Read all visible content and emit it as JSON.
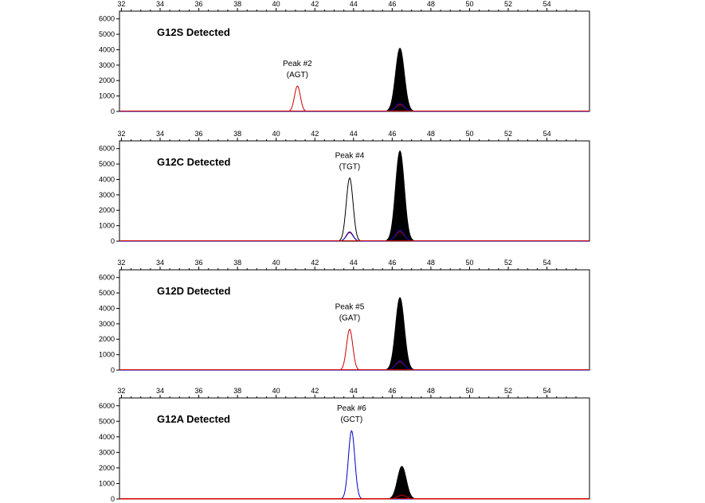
{
  "chart_data": [
    {
      "type": "line",
      "title": "G12S Detected",
      "x_ticks": [
        32,
        34,
        36,
        38,
        40,
        42,
        44,
        46,
        48,
        50,
        52,
        54
      ],
      "y_ticks": [
        0,
        1000,
        2000,
        3000,
        4000,
        5000,
        6000
      ],
      "xlim": [
        31.9,
        56.2
      ],
      "ylim": [
        0,
        6500
      ],
      "annotation": {
        "label": "Peak #2",
        "codon": "(AGT)",
        "x": 41.1,
        "y": 1650
      },
      "series": [
        {
          "color": "#000000",
          "fill": true,
          "peaks": [
            {
              "x": 46.4,
              "height": 4100,
              "width": 0.45
            }
          ]
        },
        {
          "color": "#cc0000",
          "fill": false,
          "peaks": [
            {
              "x": 41.1,
              "height": 1650,
              "width": 0.3
            },
            {
              "x": 46.4,
              "height": 450,
              "width": 0.45
            }
          ]
        },
        {
          "color": "#0000cc",
          "fill": false,
          "peaks": [
            {
              "x": 46.4,
              "height": 520,
              "width": 0.45
            }
          ]
        }
      ]
    },
    {
      "type": "line",
      "title": "G12C Detected",
      "x_ticks": [
        32,
        34,
        36,
        38,
        40,
        42,
        44,
        46,
        48,
        50,
        52,
        54
      ],
      "y_ticks": [
        0,
        1000,
        2000,
        3000,
        4000,
        5000,
        6000
      ],
      "xlim": [
        31.9,
        56.2
      ],
      "ylim": [
        0,
        6500
      ],
      "annotation": {
        "label": "Peak #4",
        "codon": "(TGT)",
        "x": 43.8,
        "y": 4100
      },
      "series": [
        {
          "color": "#000000",
          "fill": true,
          "peaks": [
            {
              "x": 46.4,
              "height": 5850,
              "width": 0.45
            }
          ]
        },
        {
          "color": "#000000",
          "fill": false,
          "peaks": [
            {
              "x": 43.8,
              "height": 4100,
              "width": 0.35
            }
          ]
        },
        {
          "color": "#cc0000",
          "fill": false,
          "peaks": [
            {
              "x": 43.8,
              "height": 550,
              "width": 0.35
            },
            {
              "x": 46.4,
              "height": 620,
              "width": 0.45
            }
          ]
        },
        {
          "color": "#0000cc",
          "fill": false,
          "peaks": [
            {
              "x": 43.8,
              "height": 600,
              "width": 0.35
            },
            {
              "x": 46.4,
              "height": 700,
              "width": 0.45
            }
          ]
        }
      ]
    },
    {
      "type": "line",
      "title": "G12D Detected",
      "x_ticks": [
        32,
        34,
        36,
        38,
        40,
        42,
        44,
        46,
        48,
        50,
        52,
        54
      ],
      "y_ticks": [
        0,
        1000,
        2000,
        3000,
        4000,
        5000,
        6000
      ],
      "xlim": [
        31.9,
        56.2
      ],
      "ylim": [
        0,
        6500
      ],
      "annotation": {
        "label": "Peak #5",
        "codon": "(GAT)",
        "x": 43.8,
        "y": 2650
      },
      "series": [
        {
          "color": "#000000",
          "fill": true,
          "peaks": [
            {
              "x": 46.4,
              "height": 4700,
              "width": 0.45
            }
          ]
        },
        {
          "color": "#cc0000",
          "fill": false,
          "peaks": [
            {
              "x": 43.8,
              "height": 2650,
              "width": 0.32
            },
            {
              "x": 46.4,
              "height": 550,
              "width": 0.45
            }
          ]
        },
        {
          "color": "#0000cc",
          "fill": false,
          "peaks": [
            {
              "x": 46.4,
              "height": 600,
              "width": 0.45
            }
          ]
        }
      ]
    },
    {
      "type": "line",
      "title": "G12A Detected",
      "x_ticks": [
        32,
        34,
        36,
        38,
        40,
        42,
        44,
        46,
        48,
        50,
        52,
        54
      ],
      "y_ticks": [
        0,
        1000,
        2000,
        3000,
        4000,
        5000,
        6000
      ],
      "xlim": [
        31.9,
        56.2
      ],
      "ylim": [
        0,
        6500
      ],
      "annotation": {
        "label": "Peak #6",
        "codon": "(GCT)",
        "x": 43.9,
        "y": 4400
      },
      "series": [
        {
          "color": "#000000",
          "fill": true,
          "peaks": [
            {
              "x": 46.5,
              "height": 2100,
              "width": 0.45
            }
          ]
        },
        {
          "color": "#0000cc",
          "fill": false,
          "peaks": [
            {
              "x": 43.9,
              "height": 4400,
              "width": 0.33
            }
          ]
        },
        {
          "color": "#cc0000",
          "fill": false,
          "peaks": [
            {
              "x": 46.5,
              "height": 250,
              "width": 0.45
            }
          ]
        }
      ]
    }
  ]
}
